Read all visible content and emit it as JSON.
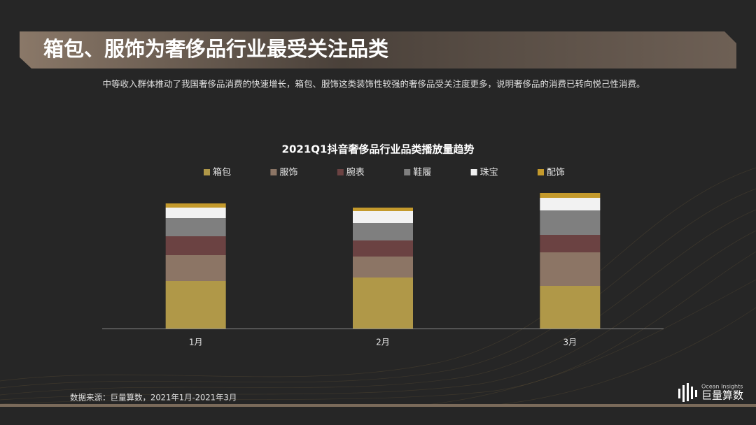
{
  "header": {
    "title": "箱包、服饰为奢侈品行业最受关注品类",
    "subtitle": "中等收入群体推动了我国奢侈品消费的快速增长，箱包、服饰这类装饰性较强的奢侈品受关注度更多，说明奢侈品的消费已转向悦己性消费。"
  },
  "chart_data": {
    "type": "bar",
    "stacked": true,
    "title": "2021Q1抖音奢侈品行业品类播放量趋势",
    "categories": [
      "1月",
      "2月",
      "3月"
    ],
    "series": [
      {
        "name": "箱包",
        "color": "#b09848",
        "values": [
          68,
          73,
          61
        ]
      },
      {
        "name": "服饰",
        "color": "#8c7565",
        "values": [
          37,
          30,
          48
        ]
      },
      {
        "name": "腕表",
        "color": "#6b4242",
        "values": [
          27,
          23,
          25
        ]
      },
      {
        "name": "鞋履",
        "color": "#7f7f7f",
        "values": [
          26,
          25,
          35
        ]
      },
      {
        "name": "珠宝",
        "color": "#f2f2f2",
        "values": [
          15,
          17,
          18
        ]
      },
      {
        "name": "配饰",
        "color": "#c49a2c",
        "values": [
          6,
          5,
          7
        ]
      }
    ],
    "ylim": [
      0,
      200
    ],
    "legend": "top"
  },
  "footer": {
    "source": "数据来源：巨量算数，2021年1月-2021年3月"
  },
  "logo": {
    "tagline": "Ocean Insights",
    "brand": "巨量算数"
  }
}
